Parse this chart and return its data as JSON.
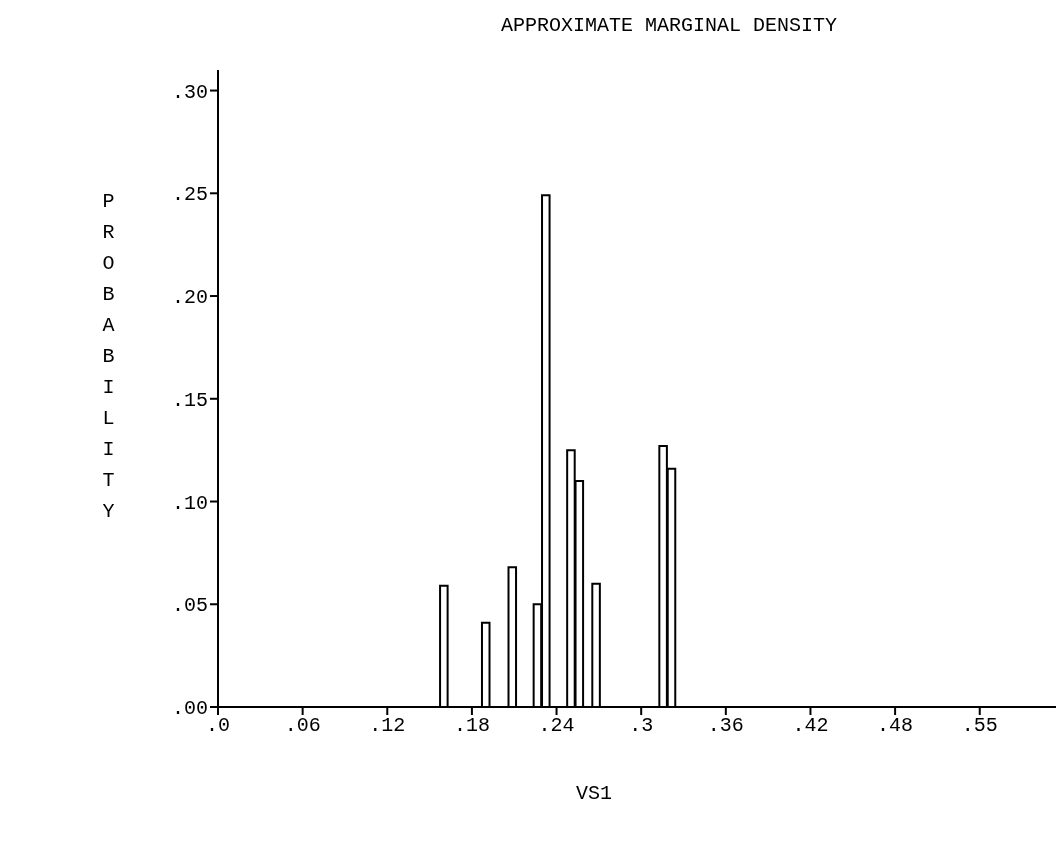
{
  "chart_data": {
    "type": "bar",
    "title": "APPROXIMATE MARGINAL DENSITY",
    "xlabel": "VS1",
    "ylabel": "PROBABILITY",
    "x": [
      0.162,
      0.192,
      0.211,
      0.229,
      0.235,
      0.253,
      0.259,
      0.271,
      0.319,
      0.325
    ],
    "values": [
      0.059,
      0.041,
      0.068,
      0.05,
      0.249,
      0.125,
      0.11,
      0.06,
      0.127,
      0.116
    ],
    "color": "#ffffff",
    "xlim": [
      0,
      0.6
    ],
    "xticks": [
      {
        "value": 0,
        "label": ".0"
      },
      {
        "value": 0.0606,
        "label": ".06"
      },
      {
        "value": 0.1212,
        "label": ".12"
      },
      {
        "value": 0.1818,
        "label": ".18"
      },
      {
        "value": 0.2424,
        "label": ".24"
      },
      {
        "value": 0.303,
        "label": ".3"
      },
      {
        "value": 0.3636,
        "label": ".36"
      },
      {
        "value": 0.4242,
        "label": ".42"
      },
      {
        "value": 0.4848,
        "label": ".48"
      },
      {
        "value": 0.5454,
        "label": ".55"
      }
    ],
    "ylim": [
      0,
      0.31
    ],
    "yticks": [
      {
        "value": 0,
        "label": ".00"
      },
      {
        "value": 0.05,
        "label": ".05"
      },
      {
        "value": 0.1,
        "label": ".10"
      },
      {
        "value": 0.15,
        "label": ".15"
      },
      {
        "value": 0.2,
        "label": ".20"
      },
      {
        "value": 0.25,
        "label": ".25"
      },
      {
        "value": 0.3,
        "label": ".30"
      }
    ],
    "grid": false
  }
}
